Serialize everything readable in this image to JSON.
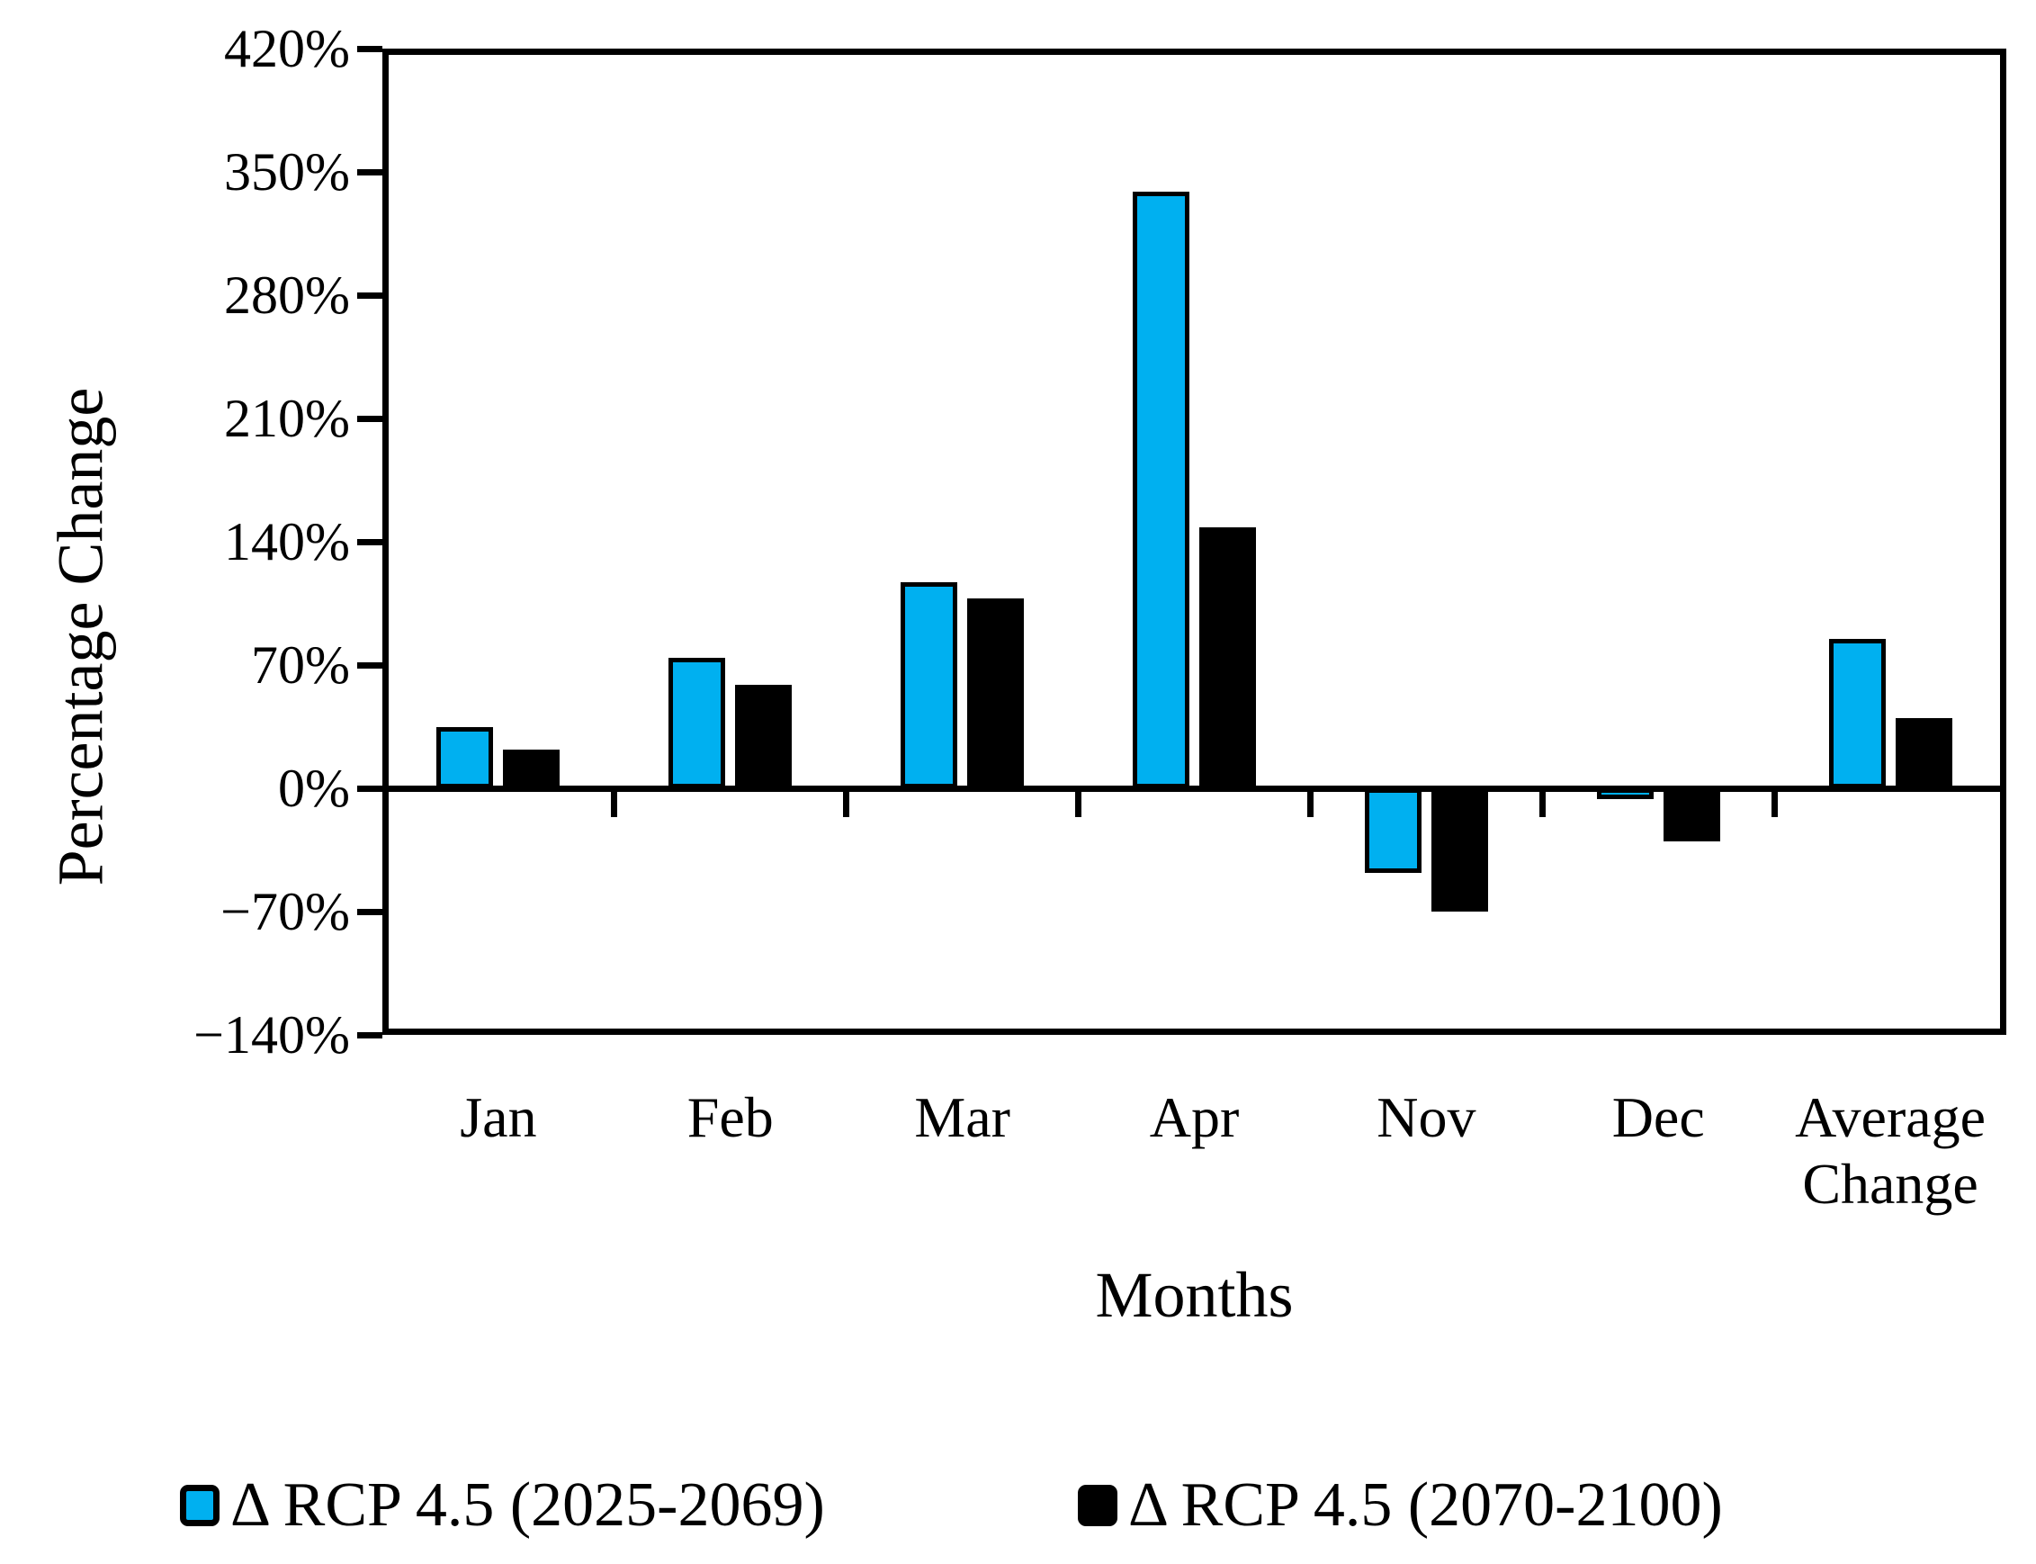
{
  "chart_data": {
    "type": "bar",
    "title": "",
    "xlabel": "Months",
    "ylabel": "Percentage Change",
    "categories": [
      "Jan",
      "Feb",
      "Mar",
      "Apr",
      "Nov",
      "Dec",
      "Average Change"
    ],
    "series": [
      {
        "name": "Δ RCP 4.5 (2025-2069)",
        "color": "#00B0F0",
        "values": [
          35,
          74,
          117,
          339,
          -48,
          -6,
          85
        ]
      },
      {
        "name": "Δ RCP 4.5 (2070-2100)",
        "color": "#000000",
        "values": [
          22,
          59,
          108,
          148,
          -70,
          -30,
          40
        ]
      }
    ],
    "ylim": [
      -140,
      420
    ],
    "ytick_step": 70,
    "ytick_labels": [
      "420%",
      "350%",
      "280%",
      "210%",
      "140%",
      "70%",
      "0%",
      "−70%",
      "−140%"
    ],
    "grid": false,
    "bar_outline_color": "#000000",
    "legend_position": "bottom"
  }
}
